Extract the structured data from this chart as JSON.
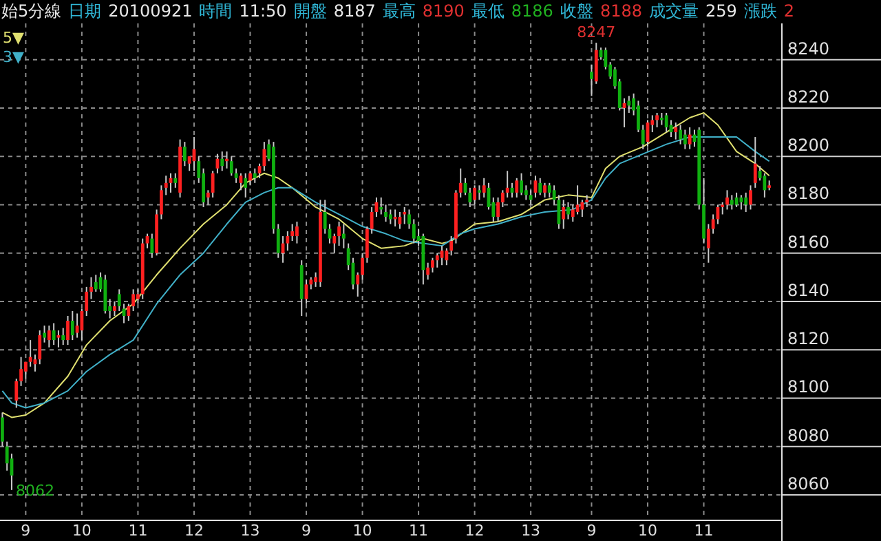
{
  "chart_data": {
    "type": "candlestick",
    "title": "始5分線",
    "annotations": [
      "日期",
      "20100921",
      "時間",
      "11:50",
      "開盤",
      "8187",
      "最高",
      "8190",
      "最低",
      "8186",
      "收盤",
      "8188",
      "成交量",
      "259",
      "漲跌",
      "2",
      {
        "text": "8247",
        "y": 8247
      },
      "8062"
    ],
    "categories": [
      null,
      null,
      null,
      null,
      null,
      "9",
      null,
      null,
      null,
      null,
      null,
      null,
      null,
      null,
      null,
      null,
      null,
      "10",
      null,
      null,
      null,
      null,
      null,
      null,
      null,
      null,
      null,
      null,
      null,
      "11",
      null,
      null,
      null,
      null,
      null,
      null,
      null,
      null,
      null,
      null,
      null,
      "12",
      null,
      null,
      null,
      null,
      null,
      null,
      null,
      null,
      null,
      null,
      null,
      "13",
      null,
      null,
      null,
      null,
      null,
      null,
      null,
      null,
      null,
      null,
      null,
      "9",
      null,
      null,
      null,
      null,
      null,
      null,
      null,
      null,
      null,
      null,
      null,
      "10",
      null,
      null,
      null,
      null,
      null,
      null,
      null,
      null,
      null,
      null,
      null,
      "11",
      null,
      null,
      null,
      null,
      null,
      null,
      null,
      null,
      null,
      null,
      null,
      "12",
      null,
      null,
      null,
      null,
      null,
      null,
      null,
      null,
      null,
      null,
      null,
      "13",
      null,
      null,
      null,
      null,
      null,
      null,
      null,
      null,
      null,
      null,
      null,
      null,
      "9",
      null,
      null,
      null,
      null,
      null,
      null,
      null,
      null,
      null,
      null,
      null,
      "10",
      null,
      null,
      null,
      null,
      null,
      null,
      null,
      null,
      null,
      null,
      null,
      "11",
      null,
      null,
      null,
      null,
      null,
      null,
      null,
      null,
      null,
      null,
      null,
      null,
      null,
      null
    ],
    "ohlc": [
      [
        8092,
        8094,
        8080,
        8082
      ],
      [
        8080,
        8082,
        8070,
        8073
      ],
      [
        8075,
        8077,
        8062,
        8068
      ],
      [
        8099,
        8108,
        8096,
        8107
      ],
      [
        8107,
        8117,
        8105,
        8112
      ],
      [
        8111,
        8115,
        8108,
        8115
      ],
      [
        8115,
        8124,
        8113,
        8117
      ],
      [
        8114,
        8118,
        8111,
        8116
      ],
      [
        8116,
        8128,
        8114,
        8126
      ],
      [
        8127,
        8130,
        8123,
        8125
      ],
      [
        8124,
        8130,
        8121,
        8128
      ],
      [
        8128,
        8131,
        8122,
        8124
      ],
      [
        8125,
        8128,
        8121,
        8126
      ],
      [
        8126,
        8129,
        8122,
        8124
      ],
      [
        8124,
        8134,
        8122,
        8132
      ],
      [
        8132,
        8136,
        8124,
        8126
      ],
      [
        8127,
        8135,
        8125,
        8130
      ],
      [
        8128,
        8137,
        8124,
        8136
      ],
      [
        8136,
        8146,
        8134,
        8144
      ],
      [
        8144,
        8150,
        8141,
        8146
      ],
      [
        8148,
        8151,
        8144,
        8145
      ],
      [
        8150,
        8152,
        8144,
        8145
      ],
      [
        8149,
        8151,
        8135,
        8136
      ],
      [
        8138,
        8141,
        8133,
        8136
      ],
      [
        8136,
        8140,
        8134,
        8138
      ],
      [
        8143,
        8145,
        8136,
        8138
      ],
      [
        8137,
        8139,
        8131,
        8134
      ],
      [
        8134,
        8139,
        8132,
        8138
      ],
      [
        8138,
        8145,
        8136,
        8143
      ],
      [
        8141,
        8145,
        8139,
        8143
      ],
      [
        8143,
        8166,
        8141,
        8164
      ],
      [
        8164,
        8168,
        8162,
        8167
      ],
      [
        8166,
        8168,
        8158,
        8160
      ],
      [
        8160,
        8178,
        8159,
        8176
      ],
      [
        8176,
        8188,
        8174,
        8186
      ],
      [
        8187,
        8192,
        8184,
        8189
      ],
      [
        8189,
        8193,
        8185,
        8191
      ],
      [
        8191,
        8193,
        8187,
        8189
      ],
      [
        8185,
        8207,
        8183,
        8204
      ],
      [
        8204,
        8206,
        8196,
        8198
      ],
      [
        8197,
        8200,
        8194,
        8200
      ],
      [
        8198,
        8208,
        8194,
        8203
      ],
      [
        8198,
        8200,
        8189,
        8191
      ],
      [
        8193,
        8195,
        8179,
        8181
      ],
      [
        8183,
        8186,
        8180,
        8185
      ],
      [
        8185,
        8194,
        8183,
        8193
      ],
      [
        8195,
        8201,
        8193,
        8199
      ],
      [
        8199,
        8202,
        8194,
        8196
      ],
      [
        8198,
        8202,
        8195,
        8199
      ],
      [
        8198,
        8200,
        8192,
        8193
      ],
      [
        8193,
        8195,
        8189,
        8191
      ],
      [
        8189,
        8193,
        8186,
        8192
      ],
      [
        8191,
        8193,
        8183,
        8187
      ],
      [
        8190,
        8194,
        8188,
        8193
      ],
      [
        8193,
        8195,
        8189,
        8191
      ],
      [
        8193,
        8197,
        8191,
        8196
      ],
      [
        8196,
        8206,
        8194,
        8203
      ],
      [
        8205,
        8207,
        8198,
        8199
      ],
      [
        8204,
        8206,
        8168,
        8170
      ],
      [
        8170,
        8172,
        8158,
        8160
      ],
      [
        8160,
        8167,
        8156,
        8164
      ],
      [
        8164,
        8169,
        8161,
        8167
      ],
      [
        8167,
        8172,
        8165,
        8169
      ],
      [
        8167,
        8173,
        8164,
        8171
      ],
      [
        8155,
        8157,
        8134,
        8141
      ],
      [
        8141,
        8149,
        8139,
        8147
      ],
      [
        8147,
        8150,
        8145,
        8149
      ],
      [
        8148,
        8152,
        8146,
        8150
      ],
      [
        8148,
        8182,
        8146,
        8177
      ],
      [
        8177,
        8182,
        8168,
        8170
      ],
      [
        8170,
        8172,
        8164,
        8166
      ],
      [
        8164,
        8168,
        8160,
        8167
      ],
      [
        8167,
        8173,
        8163,
        8171
      ],
      [
        8168,
        8172,
        8162,
        8166
      ],
      [
        8162,
        8164,
        8153,
        8155
      ],
      [
        8156,
        8158,
        8145,
        8147
      ],
      [
        8147,
        8152,
        8142,
        8151
      ],
      [
        8151,
        8160,
        8149,
        8158
      ],
      [
        8158,
        8171,
        8156,
        8170
      ],
      [
        8170,
        8179,
        8168,
        8177
      ],
      [
        8177,
        8183,
        8175,
        8181
      ],
      [
        8179,
        8183,
        8176,
        8178
      ],
      [
        8177,
        8180,
        8173,
        8175
      ],
      [
        8176,
        8178,
        8172,
        8174
      ],
      [
        8174,
        8178,
        8171,
        8175
      ],
      [
        8172,
        8177,
        8170,
        8175
      ],
      [
        8176,
        8179,
        8172,
        8177
      ],
      [
        8176,
        8178,
        8170,
        8172
      ],
      [
        8172,
        8174,
        8164,
        8166
      ],
      [
        8167,
        8170,
        8163,
        8165
      ],
      [
        8167,
        8168,
        8147,
        8153
      ],
      [
        8151,
        8156,
        8149,
        8154
      ],
      [
        8154,
        8158,
        8152,
        8157
      ],
      [
        8157,
        8160,
        8154,
        8159
      ],
      [
        8158,
        8163,
        8155,
        8161
      ],
      [
        8157,
        8162,
        8155,
        8161
      ],
      [
        8161,
        8167,
        8159,
        8165
      ],
      [
        8166,
        8186,
        8164,
        8185
      ],
      [
        8185,
        8195,
        8183,
        8189
      ],
      [
        8189,
        8191,
        8184,
        8185
      ],
      [
        8185,
        8187,
        8179,
        8181
      ],
      [
        8182,
        8188,
        8180,
        8187
      ],
      [
        8186,
        8188,
        8182,
        8185
      ],
      [
        8185,
        8191,
        8183,
        8188
      ],
      [
        8187,
        8189,
        8178,
        8179
      ],
      [
        8181,
        8183,
        8173,
        8175
      ],
      [
        8175,
        8183,
        8173,
        8181
      ],
      [
        8181,
        8186,
        8179,
        8185
      ],
      [
        8185,
        8194,
        8183,
        8187
      ],
      [
        8187,
        8189,
        8183,
        8185
      ],
      [
        8185,
        8191,
        8183,
        8190
      ],
      [
        8190,
        8193,
        8184,
        8185
      ],
      [
        8186,
        8188,
        8182,
        8184
      ],
      [
        8184,
        8186,
        8180,
        8182
      ],
      [
        8185,
        8192,
        8183,
        8190
      ],
      [
        8189,
        8191,
        8184,
        8185
      ],
      [
        8185,
        8189,
        8183,
        8188
      ],
      [
        8188,
        8189,
        8183,
        8185
      ],
      [
        8186,
        8188,
        8180,
        8182
      ],
      [
        8182,
        8184,
        8170,
        8172
      ],
      [
        8174,
        8182,
        8170,
        8179
      ],
      [
        8179,
        8181,
        8174,
        8176
      ],
      [
        8175,
        8180,
        8173,
        8178
      ],
      [
        8177,
        8188,
        8176,
        8180
      ],
      [
        8178,
        8182,
        8175,
        8181
      ],
      [
        8181,
        8184,
        8179,
        8182
      ],
      [
        8235,
        8238,
        8225,
        8232
      ],
      [
        8231,
        8247,
        8230,
        8244
      ],
      [
        8244,
        8245,
        8240,
        8241
      ],
      [
        8244,
        8245,
        8236,
        8237
      ],
      [
        8238,
        8239,
        8232,
        8233
      ],
      [
        8236,
        8237,
        8228,
        8229
      ],
      [
        8231,
        8232,
        8219,
        8220
      ],
      [
        8220,
        8224,
        8212,
        8222
      ],
      [
        8223,
        8225,
        8218,
        8221
      ],
      [
        8224,
        8226,
        8217,
        8219
      ],
      [
        8221,
        8223,
        8210,
        8211
      ],
      [
        8211,
        8213,
        8203,
        8205
      ],
      [
        8206,
        8215,
        8204,
        8214
      ],
      [
        8213,
        8217,
        8210,
        8215
      ],
      [
        8215,
        8218,
        8212,
        8217
      ],
      [
        8216,
        8218,
        8213,
        8215
      ],
      [
        8217,
        8218,
        8210,
        8212
      ],
      [
        8213,
        8215,
        8208,
        8210
      ],
      [
        8210,
        8214,
        8207,
        8212
      ],
      [
        8211,
        8213,
        8205,
        8207
      ],
      [
        8209,
        8211,
        8203,
        8205
      ],
      [
        8205,
        8212,
        8203,
        8209
      ],
      [
        8209,
        8211,
        8204,
        8206
      ],
      [
        8211,
        8212,
        8178,
        8180
      ],
      [
        8180,
        8191,
        8164,
        8166
      ],
      [
        8162,
        8172,
        8156,
        8170
      ],
      [
        8170,
        8176,
        8168,
        8174
      ],
      [
        8174,
        8180,
        8172,
        8179
      ],
      [
        8179,
        8181,
        8176,
        8180
      ],
      [
        8180,
        8186,
        8178,
        8183
      ],
      [
        8182,
        8184,
        8178,
        8180
      ],
      [
        8183,
        8185,
        8179,
        8180
      ],
      [
        8183,
        8184,
        8178,
        8181
      ],
      [
        8183,
        8185,
        8177,
        8180
      ],
      [
        8180,
        8188,
        8178,
        8186
      ],
      [
        8189,
        8208,
        8187,
        8197
      ],
      [
        8194,
        8196,
        8190,
        8191
      ],
      [
        8192,
        8193,
        8183,
        8186
      ],
      [
        8187,
        8190,
        8186,
        8188
      ]
    ],
    "series": [
      {
        "name": "5▼",
        "type": "line",
        "color": "#e0e070",
        "values": [
          8094,
          null,
          8092,
          null,
          null,
          8093,
          null,
          null,
          null,
          8098,
          null,
          null,
          null,
          null,
          8109,
          null,
          null,
          null,
          8122,
          null,
          null,
          null,
          null,
          8132,
          null,
          null,
          null,
          null,
          8139,
          null,
          null,
          null,
          null,
          8151,
          null,
          null,
          null,
          null,
          8162,
          null,
          null,
          null,
          null,
          8172,
          null,
          null,
          null,
          null,
          8180,
          null,
          null,
          null,
          8189,
          null,
          null,
          null,
          8193,
          null,
          null,
          8191,
          null,
          null,
          8187,
          null,
          null,
          null,
          null,
          8179,
          null,
          null,
          null,
          null,
          8174,
          null,
          null,
          null,
          null,
          8166,
          null,
          null,
          null,
          8162,
          null,
          null,
          null,
          null,
          8163,
          null,
          null,
          null,
          8166,
          null,
          null,
          null,
          8164,
          null,
          8165,
          null,
          null,
          null,
          null,
          8172,
          null,
          null,
          null,
          null,
          8173,
          null,
          null,
          null,
          null,
          8176,
          null,
          null,
          null,
          null,
          8182,
          null,
          null,
          null,
          null,
          8184,
          null,
          null,
          null,
          null,
          8183,
          null,
          null,
          8195,
          null,
          null,
          8200,
          null,
          null,
          null,
          null,
          8204,
          null,
          null,
          null,
          null,
          8210,
          null,
          null,
          null,
          null,
          8216,
          null,
          null,
          8218,
          null,
          null,
          8213,
          null,
          null,
          null,
          8202,
          null,
          null,
          null,
          8197,
          null,
          null,
          8192
        ]
      },
      {
        "name": "3▼",
        "type": "line",
        "color": "#40b0c8",
        "values": [
          8103,
          null,
          8098,
          null,
          null,
          8096,
          null,
          null,
          null,
          8098,
          null,
          null,
          null,
          null,
          8103,
          null,
          null,
          null,
          8111,
          null,
          null,
          null,
          null,
          8118,
          null,
          null,
          null,
          null,
          8124,
          null,
          null,
          null,
          null,
          8139,
          null,
          null,
          null,
          null,
          8151,
          null,
          null,
          null,
          null,
          8160,
          null,
          null,
          null,
          null,
          8172,
          null,
          null,
          null,
          8181,
          null,
          null,
          null,
          8185,
          null,
          null,
          8187,
          null,
          null,
          8187,
          null,
          null,
          null,
          null,
          8181,
          null,
          null,
          null,
          null,
          8176,
          null,
          null,
          null,
          null,
          8171,
          null,
          null,
          null,
          null,
          8168,
          null,
          null,
          null,
          8165,
          null,
          null,
          null,
          8164,
          null,
          null,
          null,
          8163,
          null,
          null,
          null,
          8168,
          null,
          null,
          8170,
          null,
          null,
          null,
          null,
          8172,
          null,
          null,
          null,
          null,
          8175,
          null,
          null,
          null,
          null,
          8177,
          null,
          null,
          null,
          null,
          null,
          8178,
          null,
          null,
          null,
          8182,
          null,
          null,
          8191,
          null,
          null,
          8197,
          null,
          null,
          null,
          null,
          8201,
          null,
          null,
          null,
          null,
          8205,
          null,
          null,
          null,
          null,
          8208,
          null,
          null,
          null,
          null,
          8208,
          null,
          null,
          null,
          null,
          8208,
          null,
          null,
          null,
          8202,
          null,
          null,
          8198
        ]
      }
    ],
    "ylim": [
      8050,
      8255
    ],
    "yticks": [
      8060,
      8080,
      8100,
      8120,
      8140,
      8160,
      8180,
      8200,
      8220,
      8240
    ],
    "grid": true,
    "legend": "top left"
  }
}
